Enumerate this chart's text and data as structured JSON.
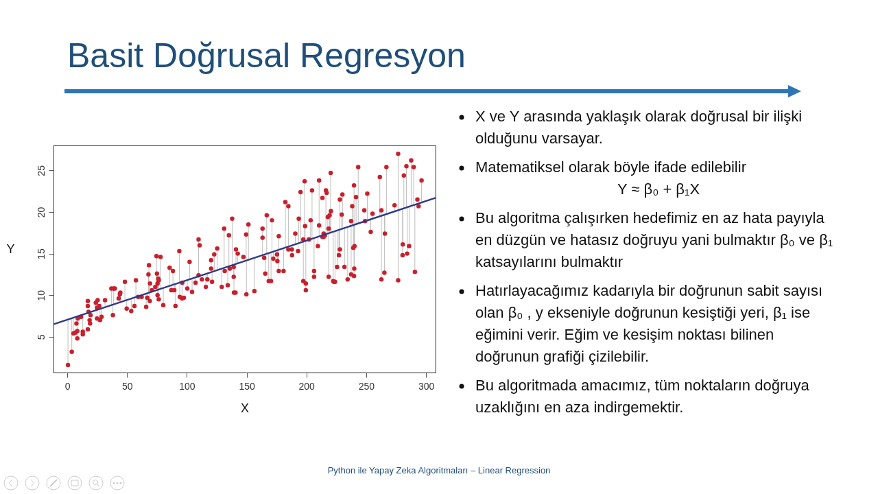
{
  "chart_data": {
    "type": "scatter",
    "title": "Basit Doğrusal Regresyon",
    "xlabel": "X",
    "ylabel": "Y",
    "xlim": [
      -11.5,
      308
    ],
    "ylim": [
      0.7,
      28
    ],
    "xticks": [
      0,
      50,
      100,
      150,
      200,
      250,
      300
    ],
    "yticks": [
      5,
      10,
      15,
      20,
      25
    ],
    "grid": false,
    "annotations": [
      "X ve Y arasında yaklaşık olarak doğrusal bir ilişki olduğunu varsayar.",
      "Matematiksel olarak böyle ifade edilebilir",
      "Y ≈ β₀ + β₁X",
      "Bu algoritma çalışırken hedefimiz en az hata payıyla en düzgün ve hatasız doğruyu yani bulmaktır β₀ ve β₁ katsayılarını bulmaktır",
      "Hatırlayacağımız kadarıyla bir doğrunun sabit sayısı olan β₀  , y ekseniyle doğrunun kesiştiği yeri, β₁ ise eğimini verir. Eğim ve kesişim noktası bilinen doğrunun grafiği çizilebilir.",
      "Bu algoritmada amacımız, tüm noktaların doğruya uzaklığını en aza indirgemektir.",
      "Python ile Yapay Zeka Algoritmaları – Linear Regression"
    ],
    "series": [
      {
        "marker": "circle",
        "color": "#c8202c",
        "x": [
          0.6,
          3.8,
          5.2,
          6.9,
          8.4,
          8.4,
          7.7,
          8.8,
          11.5,
          13.0,
          13.0,
          17.2,
          17.2,
          17.2,
          17.8,
          18.7,
          19.1,
          19.5,
          23.9,
          25.4,
          24.9,
          26.8,
          24.9,
          27.4,
          28.7,
          31.6,
          36.9,
          38.8,
          39.8,
          38.2,
          43.0,
          44.0,
          44.4,
          48.2,
          49.7,
          53.5,
          56.2,
          57.4,
          59.3,
          62.2,
          66.0,
          66.9,
          67.9,
          68.3,
          69.2,
          69.0,
          70.8,
          73.6,
          74.6,
          78.0,
          75.0,
          75.5,
          76.1,
          76.5,
          75.5,
          76.5,
          80.3,
          85.6,
          88.4,
          87.0,
          89.5,
          90.5,
          93.7,
          94.1,
          96.0,
          97.5,
          96.2,
          100.4,
          102.3,
          104.4,
          107.3,
          109.8,
          110.7,
          109.8,
          112.6,
          115.9,
          117.2,
          120.3,
          120.3,
          121.1,
          122.9,
          125.4,
          129.2,
          131.2,
          131.7,
          134.2,
          135.2,
          135.9,
          139.2,
          137.9,
          139.2,
          139.4,
          140.7,
          141.1,
          142.6,
          147.3,
          149.6,
          149.8,
          151.5,
          156.5,
          163.3,
          163.3,
          164.7,
          165.6,
          166.8,
          168.5,
          170.4,
          171.2,
          172.3,
          175.4,
          175.7,
          176.9,
          176.9,
          180.9,
          182.4,
          184.9,
          184.9,
          187.8,
          188.0,
          190.7,
          193.0,
          193.6,
          195.1,
          197.4,
          197.4,
          199.5,
          198.5,
          198.9,
          199.5,
          202.1,
          203.5,
          204.7,
          206.4,
          206.4,
          209.6,
          210.6,
          210.6,
          213.4,
          214.4,
          214.4,
          213.4,
          215.4,
          216.3,
          216.9,
          217.9,
          219.4,
          218.6,
          218.6,
          220.5,
          220.3,
          222.4,
          223.9,
          223.0,
          225.7,
          227.2,
          228.0,
          228.0,
          230.1,
          229.5,
          231.8,
          234.5,
          237.4,
          238.3,
          237.4,
          239.2,
          240.2,
          239.8,
          239.8,
          241.5,
          240.0,
          243.3,
          248.4,
          249.0,
          250.9,
          253.8,
          255.3,
          261.4,
          262.7,
          262.7,
          265.2,
          265.6,
          266.9,
          273.7,
          276.7,
          276.7,
          280.4,
          280.6,
          281.5,
          283.6,
          284.2,
          285.9,
          287.6,
          289.7,
          290.7,
          292.8,
          293.8,
          296.3
        ],
        "values": [
          1.6,
          3.2,
          5.4,
          5.5,
          5.7,
          4.8,
          6.6,
          7.2,
          7.4,
          5.6,
          5.3,
          5.9,
          9.3,
          8.7,
          8.0,
          7.0,
          6.6,
          7.6,
          9.1,
          9.4,
          8.5,
          8.7,
          7.2,
          7.0,
          7.4,
          9.4,
          10.8,
          10.8,
          10.8,
          7.6,
          9.6,
          10.1,
          10.3,
          11.6,
          8.4,
          8.1,
          8.7,
          11.8,
          9.8,
          9.8,
          8.6,
          9.7,
          12.5,
          13.6,
          11.4,
          9.3,
          10.6,
          11.0,
          14.7,
          14.6,
          12.6,
          11.4,
          12.0,
          11.8,
          10.0,
          9.5,
          8.8,
          13.3,
          12.9,
          10.6,
          10.6,
          8.7,
          15.3,
          9.8,
          9.6,
          9.7,
          11.5,
          10.8,
          14.0,
          10.4,
          11.5,
          16.7,
          16.0,
          12.4,
          11.9,
          11.0,
          11.9,
          14.2,
          13.2,
          11.6,
          14.9,
          15.6,
          11.0,
          18.0,
          12.9,
          11.2,
          17.2,
          13.2,
          13.4,
          19.2,
          12.2,
          10.3,
          10.3,
          15.5,
          15.0,
          14.6,
          17.3,
          10.1,
          18.5,
          10.5,
          18.0,
          16.9,
          14.5,
          12.6,
          19.6,
          11.7,
          11.7,
          19.0,
          14.4,
          14.9,
          14.1,
          17.1,
          12.9,
          12.9,
          21.2,
          20.7,
          15.5,
          15.5,
          14.8,
          17.4,
          15.3,
          19.2,
          22.4,
          16.7,
          11.7,
          11.4,
          23.7,
          18.3,
          10.6,
          16.7,
          19.0,
          22.6,
          12.9,
          12.2,
          15.9,
          23.8,
          18.4,
          21.7,
          17.4,
          17.0,
          17.0,
          17.2,
          22.6,
          22.3,
          19.4,
          19.6,
          18.0,
          12.2,
          20.1,
          24.7,
          11.7,
          11.6,
          11.6,
          13.4,
          14.8,
          15.5,
          21.5,
          22.1,
          19.7,
          13.4,
          11.9,
          18.9,
          20.7,
          12.5,
          15.7,
          15.9,
          23.2,
          12.3,
          21.8,
          13.2,
          25.4,
          20.2,
          18.9,
          22.2,
          17.6,
          19.8,
          24.2,
          20.2,
          11.9,
          12.7,
          17.4,
          25.4,
          20.8,
          27.0,
          11.8,
          14.8,
          16.1,
          24.4,
          25.5,
          15.0,
          15.9,
          26.2,
          25.4,
          12.8,
          21.5,
          20.7,
          23.8
        ],
        "errors": [
          [
            1.6,
            7.1
          ],
          [
            3.2,
            7.3
          ],
          [
            5.4,
            7.3
          ],
          null,
          null,
          [
            4.8,
            7.5
          ],
          null,
          null,
          null,
          null,
          [
            5.3,
            7.7
          ],
          null,
          null,
          null,
          null,
          null,
          null,
          null,
          [
            8.2,
            9.1
          ],
          [
            8.3,
            9.4
          ],
          null,
          null,
          [
            7.2,
            8.3
          ],
          [
            7.0,
            8.4
          ],
          [
            7.4,
            8.4
          ],
          [
            8.6,
            9.4
          ],
          [
            8.8,
            10.8
          ],
          [
            8.9,
            10.8
          ],
          null,
          [
            7.6,
            8.9
          ],
          null,
          [
            9.2,
            10.1
          ],
          [
            9.2,
            10.3
          ],
          [
            9.4,
            11.6
          ],
          [
            8.4,
            9.4
          ],
          [
            8.1,
            9.6
          ],
          [
            8.7,
            9.8
          ],
          [
            9.8,
            11.8
          ],
          null,
          null,
          [
            8.6,
            10.2
          ],
          [
            9.7,
            10.3
          ],
          [
            10.3,
            12.5
          ],
          [
            10.3,
            13.6
          ],
          [
            10.4,
            11.4
          ],
          [
            9.3,
            10.4
          ],
          null,
          null,
          [
            10.6,
            14.7
          ],
          [
            10.8,
            14.6
          ],
          [
            10.6,
            12.6
          ],
          [
            10.7,
            11.4
          ],
          [
            10.7,
            12.0
          ],
          [
            10.7,
            11.8
          ],
          [
            10.0,
            10.7
          ],
          [
            9.5,
            10.7
          ],
          [
            8.8,
            10.9
          ],
          [
            11.1,
            13.3
          ],
          [
            11.3,
            12.9
          ],
          [
            10.6,
            11.2
          ],
          [
            10.6,
            11.3
          ],
          [
            8.7,
            11.4
          ],
          [
            11.5,
            15.3
          ],
          [
            9.8,
            11.5
          ],
          [
            9.6,
            11.6
          ],
          null,
          null,
          [
            10.8,
            11.8
          ],
          [
            11.9,
            14.0
          ],
          [
            10.4,
            12.0
          ],
          [
            11.5,
            12.2
          ],
          [
            12.3,
            16.7
          ],
          null,
          null,
          null,
          [
            11.0,
            12.6
          ],
          [
            11.9,
            12.6
          ],
          [
            12.8,
            14.2
          ],
          null,
          [
            11.6,
            12.8
          ],
          [
            12.9,
            14.9
          ],
          [
            13.0,
            15.6
          ],
          [
            11.0,
            13.2
          ],
          [
            13.3,
            18.0
          ],
          null,
          [
            11.2,
            13.5
          ],
          [
            13.5,
            17.2
          ],
          null,
          null,
          [
            13.6,
            19.2
          ],
          [
            12.2,
            13.7
          ],
          [
            10.3,
            13.7
          ],
          null,
          [
            13.8,
            15.5
          ],
          [
            13.9,
            15.0
          ],
          null,
          [
            14.2,
            17.3
          ],
          [
            10.1,
            14.2
          ],
          [
            14.3,
            18.5
          ],
          [
            10.5,
            14.5
          ],
          [
            14.8,
            18.0
          ],
          null,
          null,
          [
            12.6,
            15.0
          ],
          [
            15.0,
            19.6
          ],
          [
            11.7,
            15.1
          ],
          [
            11.7,
            15.2
          ],
          [
            15.2,
            19.0
          ],
          [
            14.4,
            15.3
          ],
          null,
          [
            14.1,
            15.4
          ],
          [
            15.5,
            17.1
          ],
          [
            12.9,
            15.5
          ],
          [
            12.9,
            15.7
          ],
          [
            15.7,
            21.2
          ],
          [
            15.9,
            20.7
          ],
          null,
          null,
          [
            14.8,
            16.0
          ],
          [
            16.1,
            17.4
          ],
          [
            15.3,
            16.2
          ],
          [
            16.3,
            19.2
          ],
          [
            16.3,
            22.4
          ],
          null,
          [
            11.7,
            16.5
          ],
          null,
          [
            16.5,
            23.7
          ],
          [
            16.5,
            18.3
          ],
          [
            10.6,
            16.6
          ],
          null,
          [
            16.8,
            19.0
          ],
          [
            16.8,
            22.6
          ],
          null,
          [
            12.2,
            16.9
          ],
          [
            15.9,
            17.0
          ],
          [
            17.1,
            23.8
          ],
          null,
          null,
          null,
          null,
          null,
          null,
          [
            17.4,
            22.6
          ],
          null,
          [
            17.4,
            19.4
          ],
          [
            17.5,
            19.6
          ],
          null,
          [
            12.2,
            17.5
          ],
          [
            17.6,
            20.1
          ],
          [
            17.5,
            24.7
          ],
          [
            11.7,
            17.6
          ],
          [
            11.6,
            17.7
          ],
          null,
          [
            13.4,
            17.8
          ],
          [
            14.8,
            17.9
          ],
          [
            15.5,
            17.9
          ],
          [
            17.9,
            21.5
          ],
          [
            18.0,
            22.1
          ],
          [
            18.0,
            19.7
          ],
          [
            13.4,
            18.1
          ],
          [
            11.9,
            18.2
          ],
          null,
          [
            18.4,
            20.7
          ],
          [
            12.5,
            18.4
          ],
          [
            15.7,
            18.4
          ],
          [
            15.9,
            18.5
          ],
          [
            18.5,
            23.2
          ],
          [
            12.3,
            18.5
          ],
          [
            18.5,
            21.8
          ],
          [
            13.2,
            18.5
          ],
          [
            18.6,
            25.4
          ],
          null,
          null,
          [
            19.0,
            22.2
          ],
          [
            17.6,
            19.1
          ],
          [
            19.2,
            19.8
          ],
          [
            19.5,
            24.2
          ],
          [
            19.6,
            20.2
          ],
          [
            11.9,
            19.6
          ],
          [
            12.7,
            19.7
          ],
          [
            17.4,
            19.7
          ],
          [
            19.8,
            25.4
          ],
          [
            20.1,
            20.8
          ],
          [
            20.2,
            27.0
          ],
          [
            11.8,
            20.2
          ],
          [
            14.8,
            20.4
          ],
          [
            16.1,
            20.4
          ],
          [
            20.5,
            24.4
          ],
          [
            20.6,
            25.5
          ],
          [
            15.0,
            20.6
          ],
          [
            15.9,
            20.7
          ],
          [
            20.7,
            26.2
          ],
          [
            20.8,
            25.4
          ],
          [
            12.8,
            20.9
          ],
          null,
          null,
          [
            21.2,
            23.8
          ]
        ]
      },
      {
        "type": "line",
        "color": "#2e3a87",
        "x": [
          -11.5,
          308
        ],
        "values": [
          6.5,
          21.7
        ]
      }
    ]
  }
}
